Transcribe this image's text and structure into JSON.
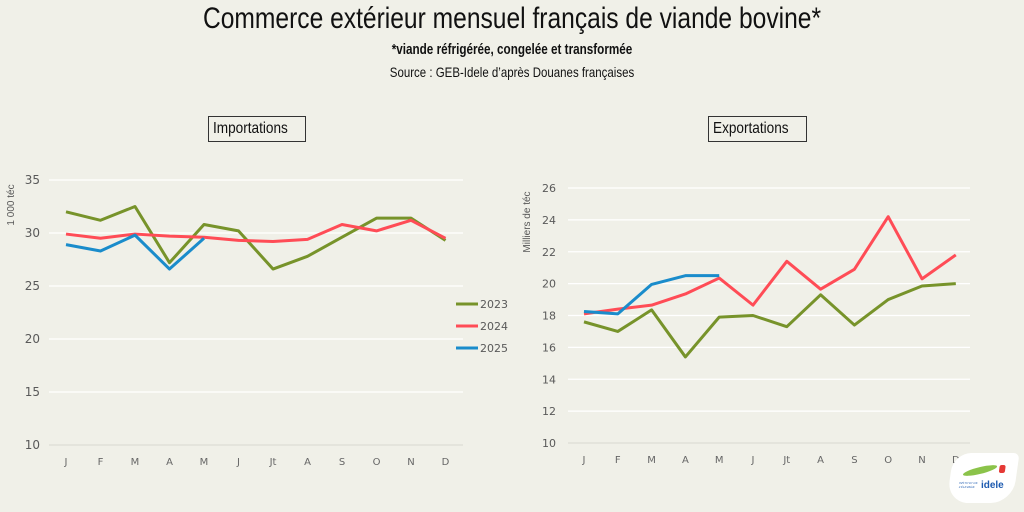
{
  "header": {
    "title": "Commerce extérieur mensuel français de viande bovine*",
    "subtitle": "*viande réfrigérée, congelée et transformée",
    "source": "Source : GEB-Idele d’après Douanes françaises"
  },
  "logo": {
    "text": "idele",
    "small": "INSTITUT DE L'ÉLEVAGE"
  },
  "colors": {
    "2023": "#77932a",
    "2024": "#ff4c56",
    "2025": "#1a8ccb",
    "grid": "#ffffff",
    "axis_text": "#595959",
    "background": "#f0f0e8"
  },
  "chart_data": [
    {
      "type": "line",
      "title": "Importations",
      "xlabel": "",
      "ylabel": "1 000 téc",
      "ylim": [
        10,
        35
      ],
      "yticks": [
        10,
        15,
        20,
        25,
        30,
        35
      ],
      "grid": true,
      "legend": "right",
      "categories": [
        "J",
        "F",
        "M",
        "A",
        "M",
        "J",
        "Jt",
        "A",
        "S",
        "O",
        "N",
        "D"
      ],
      "series": [
        {
          "name": "2023",
          "color": "#77932a",
          "values": [
            32.0,
            31.2,
            32.5,
            27.2,
            30.8,
            30.2,
            26.6,
            27.8,
            29.6,
            31.4,
            31.4,
            29.3
          ]
        },
        {
          "name": "2024",
          "color": "#ff4c56",
          "values": [
            29.9,
            29.5,
            29.9,
            29.7,
            29.6,
            29.3,
            29.2,
            29.4,
            30.8,
            30.2,
            31.2,
            29.5
          ]
        },
        {
          "name": "2025",
          "color": "#1a8ccb",
          "values": [
            28.9,
            28.3,
            29.8,
            26.6,
            29.5
          ]
        }
      ]
    },
    {
      "type": "line",
      "title": "Exportations",
      "xlabel": "",
      "ylabel": "Milliers de téc",
      "ylim": [
        10,
        26
      ],
      "yticks": [
        10,
        12,
        14,
        16,
        18,
        20,
        22,
        24,
        26
      ],
      "grid": true,
      "legend": "none",
      "categories": [
        "J",
        "F",
        "M",
        "A",
        "M",
        "J",
        "Jt",
        "A",
        "S",
        "O",
        "N",
        "D"
      ],
      "series": [
        {
          "name": "2023",
          "color": "#77932a",
          "values": [
            17.6,
            17.0,
            18.35,
            15.4,
            17.9,
            18.0,
            17.3,
            19.3,
            17.4,
            19.0,
            19.85,
            20.0
          ]
        },
        {
          "name": "2024",
          "color": "#ff4c56",
          "values": [
            18.1,
            18.4,
            18.65,
            19.35,
            20.35,
            18.65,
            21.4,
            19.65,
            20.9,
            24.2,
            20.3,
            21.8
          ]
        },
        {
          "name": "2025",
          "color": "#1a8ccb",
          "values": [
            18.25,
            18.1,
            19.95,
            20.5,
            20.5
          ]
        }
      ]
    }
  ]
}
